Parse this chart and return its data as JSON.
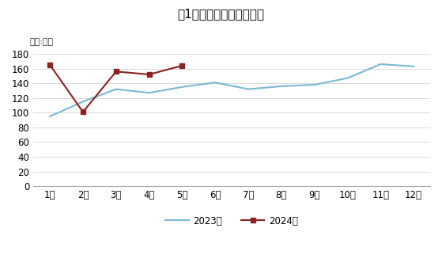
{
  "title": "图1　邮政行业寄递业务量",
  "unit_label": "单位:亿件",
  "x_labels": [
    "1月",
    "2月",
    "3月",
    "4月",
    "5月",
    "6月",
    "7月",
    "8月",
    "9月",
    "10月",
    "11月",
    "12月"
  ],
  "series_2023": {
    "label": "2023年",
    "color": "#7ab8d4",
    "values": [
      95,
      115,
      132,
      127,
      135,
      141,
      132,
      136,
      138,
      147,
      166,
      163
    ]
  },
  "series_2024": {
    "label": "2024年",
    "color": "#8b2222",
    "values": [
      165,
      101,
      156,
      152,
      164,
      null,
      null,
      null,
      null,
      null,
      null,
      null
    ]
  },
  "ylim": [
    0,
    180
  ],
  "yticks": [
    0,
    20,
    40,
    60,
    80,
    100,
    120,
    140,
    160,
    180
  ],
  "background_color": "#ffffff"
}
